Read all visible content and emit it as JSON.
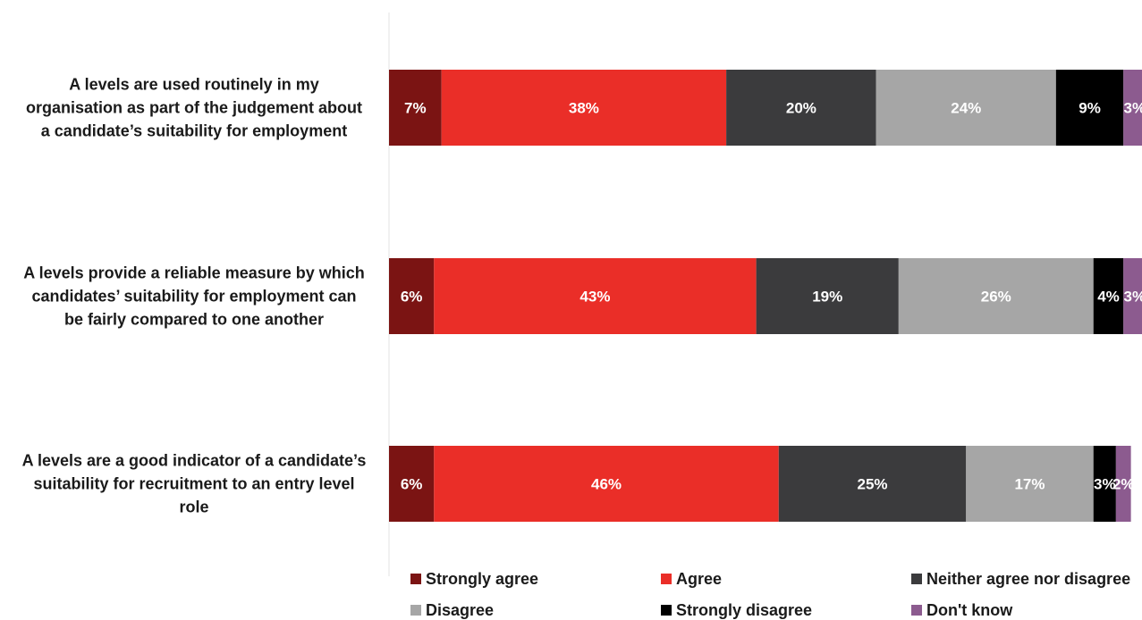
{
  "chart_data": {
    "type": "bar",
    "orientation": "horizontal",
    "stacked": true,
    "categories": [
      "A levels are used routinely in my organisation as part of the judgement about a candidate’s suitability for employment",
      "A levels provide a reliable measure by which candidates’ suitability for employment can be fairly compared to one another",
      "A levels are a good indicator of a candidate’s suitability for recruitment to an entry level role"
    ],
    "category_lines": [
      [
        "A levels are used routinely in my",
        "organisation as part of the judgement about",
        "a candidate’s suitability for employment"
      ],
      [
        "A levels provide a reliable measure by which",
        "candidates’ suitability for employment can",
        "be fairly compared to one another"
      ],
      [
        "A levels are a good indicator of a candidate’s",
        "suitability for recruitment to an entry level",
        "role"
      ]
    ],
    "series": [
      {
        "name": "Strongly agree",
        "values": [
          7,
          6,
          6
        ],
        "labels": [
          "7%",
          "6%",
          "6%"
        ],
        "color": "#7b1413"
      },
      {
        "name": "Agree",
        "values": [
          38,
          43,
          46
        ],
        "labels": [
          "38%",
          "43%",
          "46%"
        ],
        "color": "#ea2e28"
      },
      {
        "name": "Neither agree nor disagree",
        "values": [
          20,
          19,
          25
        ],
        "labels": [
          "20%",
          "19%",
          "25%"
        ],
        "color": "#3b3b3d"
      },
      {
        "name": "Disagree",
        "values": [
          24,
          26,
          17
        ],
        "labels": [
          "24%",
          "26%",
          "17%"
        ],
        "color": "#a6a6a6"
      },
      {
        "name": "Strongly disagree",
        "values": [
          9,
          4,
          3
        ],
        "labels": [
          "9%",
          "4%",
          "3%"
        ],
        "color": "#000000"
      },
      {
        "name": "Don't know",
        "values": [
          3,
          3,
          2
        ],
        "labels": [
          "3%",
          "3%",
          "2%"
        ],
        "color": "#8c5b8f"
      }
    ],
    "title": "",
    "xlabel": "",
    "ylabel": "",
    "xlim": [
      0,
      100
    ],
    "grid": false,
    "legend_position": "bottom"
  }
}
